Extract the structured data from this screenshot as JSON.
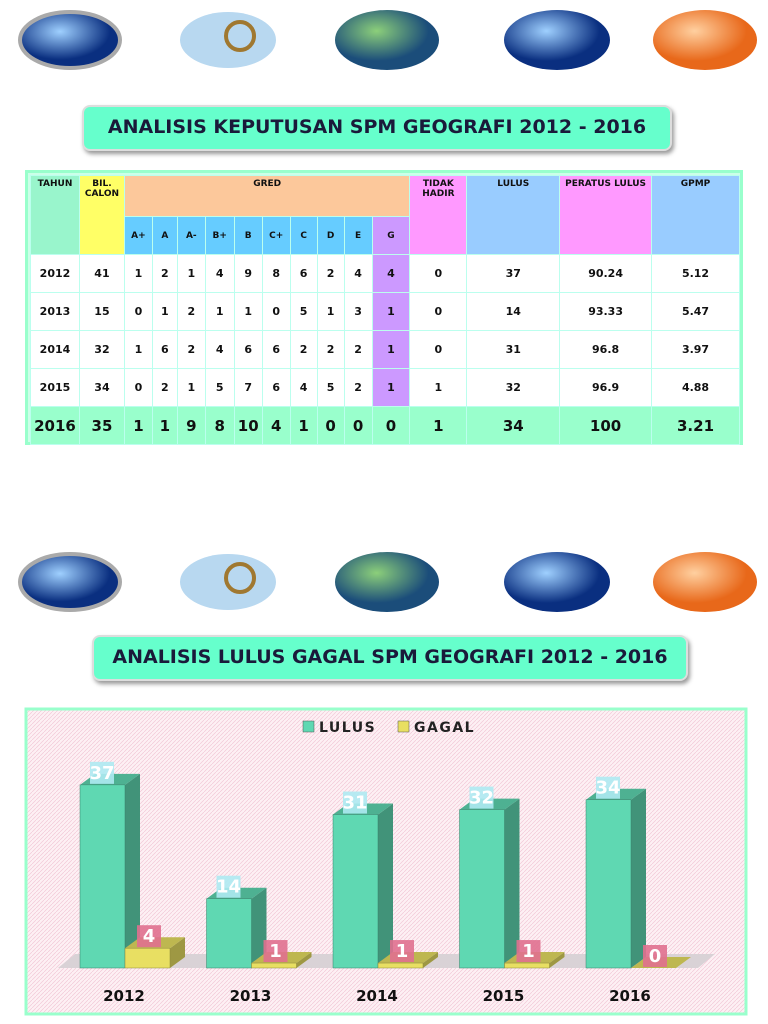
{
  "table_section": {
    "title": "ANALISIS KEPUTUSAN SPM GEOGRAFI 2012 - 2016",
    "headers": {
      "tahun": "TAHUN",
      "bil": "BIL. CALON",
      "gred": "GRED",
      "grades": [
        "A+",
        "A",
        "A-",
        "B+",
        "B",
        "C+",
        "C",
        "D",
        "E",
        "G"
      ],
      "tidak_hadir": "TIDAK HADIR",
      "lulus": "LULUS",
      "peratus": "PERATUS LULUS",
      "gpmp": "GPMP"
    },
    "rows": [
      [
        2012,
        41,
        1,
        2,
        1,
        4,
        9,
        8,
        6,
        2,
        4,
        4,
        0,
        37,
        90.24,
        5.12
      ],
      [
        2013,
        15,
        0,
        1,
        2,
        1,
        1,
        0,
        5,
        1,
        3,
        1,
        0,
        14,
        93.33,
        5.47
      ],
      [
        2014,
        32,
        1,
        6,
        2,
        4,
        6,
        6,
        2,
        2,
        2,
        1,
        0,
        31,
        96.8,
        3.97
      ],
      [
        2015,
        34,
        0,
        2,
        1,
        5,
        7,
        6,
        4,
        5,
        2,
        1,
        1,
        32,
        96.9,
        4.88
      ],
      [
        2016,
        35,
        1,
        1,
        9,
        8,
        10,
        4,
        1,
        0,
        0,
        0,
        1,
        34,
        100,
        3.21
      ]
    ]
  },
  "chart_data": {
    "type": "bar",
    "title": "ANALISIS LULUS GAGAL SPM GEOGRAFI 2012 - 2016",
    "categories": [
      "2012",
      "2013",
      "2014",
      "2015",
      "2016"
    ],
    "series": [
      {
        "name": "LULUS",
        "color": "#5fd8b2",
        "values": [
          37,
          14,
          31,
          32,
          34
        ]
      },
      {
        "name": "GAGAL",
        "color": "#e8df62",
        "values": [
          4,
          1,
          1,
          1,
          0
        ]
      }
    ],
    "legend": "top"
  }
}
